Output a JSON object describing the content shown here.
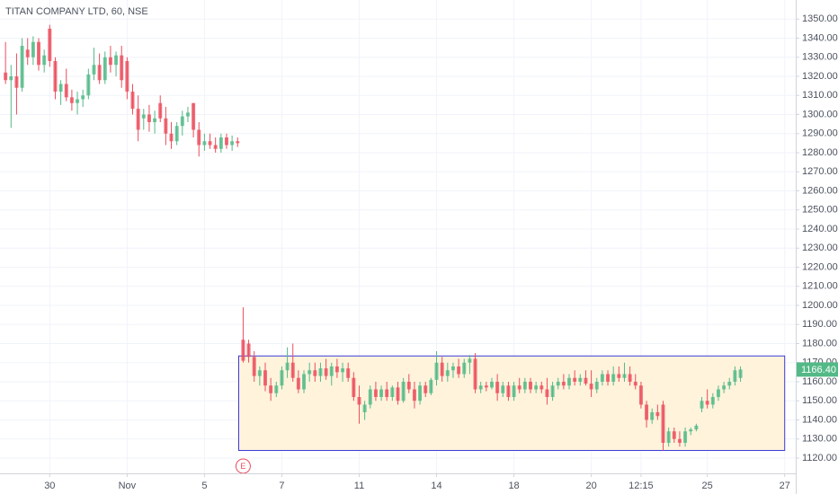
{
  "chart_data": {
    "type": "candlestick",
    "title": "TITAN COMPANY LTD, 60, NSE",
    "up_color": "#53b987",
    "down_color": "#eb4d5c",
    "grid": true,
    "xlim": [
      -1,
      143
    ],
    "ylim": [
      1112,
      1360
    ],
    "xticks": [
      {
        "value": 8,
        "label": "30"
      },
      {
        "value": 22,
        "label": "Nov"
      },
      {
        "value": 36,
        "label": "5"
      },
      {
        "value": 50,
        "label": "7"
      },
      {
        "value": 64,
        "label": "11"
      },
      {
        "value": 78,
        "label": "14"
      },
      {
        "value": 92,
        "label": "18"
      },
      {
        "value": 106,
        "label": "20"
      },
      {
        "value": 115,
        "label": "12:15"
      },
      {
        "value": 127,
        "label": "25"
      },
      {
        "value": 141,
        "label": "27"
      }
    ],
    "yticks": [
      {
        "value": 1120,
        "label": "1120.00"
      },
      {
        "value": 1130,
        "label": "1130.00"
      },
      {
        "value": 1140,
        "label": "1140.00"
      },
      {
        "value": 1150,
        "label": "1150.00"
      },
      {
        "value": 1160,
        "label": "1160.00"
      },
      {
        "value": 1170,
        "label": "1170.00"
      },
      {
        "value": 1180,
        "label": "1180.00"
      },
      {
        "value": 1190,
        "label": "1190.00"
      },
      {
        "value": 1200,
        "label": "1200.00"
      },
      {
        "value": 1210,
        "label": "1210.00"
      },
      {
        "value": 1220,
        "label": "1220.00"
      },
      {
        "value": 1230,
        "label": "1230.00"
      },
      {
        "value": 1240,
        "label": "1240.00"
      },
      {
        "value": 1250,
        "label": "1250.00"
      },
      {
        "value": 1260,
        "label": "1260.00"
      },
      {
        "value": 1270,
        "label": "1270.00"
      },
      {
        "value": 1280,
        "label": "1280.00"
      },
      {
        "value": 1290,
        "label": "1290.00"
      },
      {
        "value": 1300,
        "label": "1300.00"
      },
      {
        "value": 1310,
        "label": "1310.00"
      },
      {
        "value": 1320,
        "label": "1320.00"
      },
      {
        "value": 1330,
        "label": "1330.00"
      },
      {
        "value": 1340,
        "label": "1340.00"
      },
      {
        "value": 1350,
        "label": "1350.00"
      }
    ],
    "last_price": {
      "value": 1166.4,
      "label": "1166.40",
      "color": "#53b987"
    },
    "range_box": {
      "xlim": [
        42.2,
        141
      ],
      "ylim": [
        1124,
        1173.5
      ],
      "color": "#3b3bd6",
      "fill": "#fff3dc"
    },
    "events": [
      {
        "x": 43,
        "label": "E",
        "color": "#eb4d5c"
      }
    ],
    "ohlc": [
      [
        1322,
        1338,
        1316,
        1318
      ],
      [
        1318,
        1326,
        1293,
        1320
      ],
      [
        1320,
        1332,
        1300,
        1314
      ],
      [
        1314,
        1340,
        1312,
        1336
      ],
      [
        1334,
        1340,
        1326,
        1330
      ],
      [
        1330,
        1341,
        1326,
        1338
      ],
      [
        1338,
        1340,
        1323,
        1326
      ],
      [
        1326,
        1334,
        1322,
        1331
      ],
      [
        1345,
        1347,
        1325,
        1328
      ],
      [
        1328,
        1330,
        1308,
        1312
      ],
      [
        1312,
        1318,
        1305,
        1316
      ],
      [
        1316,
        1324,
        1307,
        1309
      ],
      [
        1309,
        1313,
        1302,
        1306
      ],
      [
        1306,
        1312,
        1300,
        1308
      ],
      [
        1308,
        1313,
        1304,
        1310
      ],
      [
        1310,
        1324,
        1308,
        1321
      ],
      [
        1321,
        1335,
        1318,
        1326
      ],
      [
        1326,
        1332,
        1316,
        1318
      ],
      [
        1318,
        1333,
        1316,
        1330
      ],
      [
        1330,
        1336,
        1322,
        1326
      ],
      [
        1326,
        1333,
        1320,
        1331
      ],
      [
        1331,
        1336,
        1314,
        1318
      ],
      [
        1328,
        1330,
        1308,
        1312
      ],
      [
        1312,
        1316,
        1300,
        1303
      ],
      [
        1303,
        1310,
        1286,
        1292
      ],
      [
        1298,
        1303,
        1292,
        1300
      ],
      [
        1300,
        1305,
        1291,
        1296
      ],
      [
        1296,
        1302,
        1290,
        1298
      ],
      [
        1306,
        1310,
        1296,
        1298
      ],
      [
        1298,
        1304,
        1284,
        1290
      ],
      [
        1290,
        1296,
        1282,
        1286
      ],
      [
        1286,
        1296,
        1284,
        1294
      ],
      [
        1294,
        1302,
        1289,
        1299
      ],
      [
        1299,
        1304,
        1296,
        1301
      ],
      [
        1306,
        1306,
        1288,
        1292
      ],
      [
        1292,
        1296,
        1278,
        1284
      ],
      [
        1284,
        1290,
        1281,
        1286
      ],
      [
        1286,
        1290,
        1282,
        1284
      ],
      [
        1284,
        1288,
        1280,
        1282
      ],
      [
        1282,
        1290,
        1280,
        1288
      ],
      [
        1288,
        1290,
        1282,
        1284
      ],
      [
        1284,
        1289,
        1281,
        1286
      ],
      [
        1286,
        1288,
        1283,
        1285
      ],
      [
        1182,
        1199,
        1170,
        1171
      ],
      [
        1180,
        1182,
        1170,
        1173
      ],
      [
        1173,
        1176,
        1160,
        1163
      ],
      [
        1163,
        1168,
        1158,
        1166
      ],
      [
        1166,
        1170,
        1155,
        1158
      ],
      [
        1158,
        1162,
        1150,
        1154
      ],
      [
        1154,
        1160,
        1152,
        1158
      ],
      [
        1158,
        1168,
        1156,
        1166
      ],
      [
        1166,
        1178,
        1162,
        1170
      ],
      [
        1170,
        1180,
        1160,
        1162
      ],
      [
        1162,
        1166,
        1154,
        1156
      ],
      [
        1156,
        1166,
        1154,
        1164
      ],
      [
        1164,
        1170,
        1160,
        1166
      ],
      [
        1166,
        1170,
        1160,
        1163
      ],
      [
        1163,
        1170,
        1160,
        1167
      ],
      [
        1167,
        1172,
        1161,
        1163
      ],
      [
        1163,
        1170,
        1158,
        1168
      ],
      [
        1168,
        1172,
        1162,
        1165
      ],
      [
        1165,
        1170,
        1160,
        1167
      ],
      [
        1167,
        1170,
        1160,
        1162
      ],
      [
        1162,
        1165,
        1150,
        1152
      ],
      [
        1152,
        1158,
        1138,
        1148
      ],
      [
        1144,
        1150,
        1140,
        1148
      ],
      [
        1148,
        1158,
        1146,
        1156
      ],
      [
        1156,
        1160,
        1150,
        1152
      ],
      [
        1152,
        1158,
        1150,
        1156
      ],
      [
        1156,
        1160,
        1150,
        1152
      ],
      [
        1152,
        1158,
        1150,
        1157
      ],
      [
        1157,
        1160,
        1148,
        1150
      ],
      [
        1150,
        1162,
        1149,
        1160
      ],
      [
        1160,
        1164,
        1154,
        1156
      ],
      [
        1156,
        1160,
        1146,
        1150
      ],
      [
        1150,
        1160,
        1148,
        1158
      ],
      [
        1158,
        1160,
        1152,
        1154
      ],
      [
        1154,
        1162,
        1153,
        1161
      ],
      [
        1161,
        1176,
        1158,
        1170
      ],
      [
        1170,
        1173,
        1160,
        1163
      ],
      [
        1163,
        1170,
        1160,
        1166
      ],
      [
        1166,
        1170,
        1162,
        1168
      ],
      [
        1168,
        1172,
        1162,
        1164
      ],
      [
        1164,
        1172,
        1162,
        1170
      ],
      [
        1170,
        1174,
        1164,
        1172
      ],
      [
        1172,
        1175,
        1154,
        1156
      ],
      [
        1156,
        1160,
        1154,
        1158
      ],
      [
        1158,
        1160,
        1155,
        1157
      ],
      [
        1157,
        1162,
        1156,
        1160
      ],
      [
        1160,
        1164,
        1150,
        1154
      ],
      [
        1154,
        1160,
        1152,
        1158
      ],
      [
        1158,
        1160,
        1150,
        1152
      ],
      [
        1152,
        1160,
        1150,
        1158
      ],
      [
        1158,
        1162,
        1154,
        1156
      ],
      [
        1156,
        1162,
        1154,
        1160
      ],
      [
        1160,
        1162,
        1154,
        1156
      ],
      [
        1156,
        1160,
        1154,
        1158
      ],
      [
        1158,
        1160,
        1154,
        1156
      ],
      [
        1156,
        1162,
        1148,
        1152
      ],
      [
        1152,
        1160,
        1150,
        1158
      ],
      [
        1158,
        1162,
        1156,
        1160
      ],
      [
        1160,
        1164,
        1156,
        1158
      ],
      [
        1158,
        1164,
        1156,
        1162
      ],
      [
        1162,
        1166,
        1158,
        1160
      ],
      [
        1160,
        1164,
        1158,
        1162
      ],
      [
        1162,
        1166,
        1158,
        1159
      ],
      [
        1159,
        1166,
        1152,
        1156
      ],
      [
        1156,
        1162,
        1154,
        1160
      ],
      [
        1160,
        1166,
        1158,
        1164
      ],
      [
        1164,
        1166,
        1158,
        1160
      ],
      [
        1160,
        1168,
        1158,
        1164
      ],
      [
        1164,
        1168,
        1160,
        1162
      ],
      [
        1162,
        1170,
        1160,
        1164
      ],
      [
        1164,
        1168,
        1158,
        1160
      ],
      [
        1160,
        1164,
        1156,
        1158
      ],
      [
        1158,
        1160,
        1146,
        1148
      ],
      [
        1148,
        1150,
        1136,
        1140
      ],
      [
        1140,
        1146,
        1138,
        1144
      ],
      [
        1144,
        1148,
        1140,
        1142
      ],
      [
        1148,
        1150,
        1124,
        1128
      ],
      [
        1128,
        1136,
        1126,
        1134
      ],
      [
        1134,
        1136,
        1128,
        1130
      ],
      [
        1130,
        1134,
        1126,
        1128
      ],
      [
        1128,
        1136,
        1126,
        1134
      ],
      [
        1134,
        1136,
        1132,
        1135
      ],
      [
        1135,
        1138,
        1134,
        1137
      ],
      [
        1146,
        1152,
        1144,
        1150
      ],
      [
        1150,
        1156,
        1146,
        1148
      ],
      [
        1148,
        1154,
        1146,
        1152
      ],
      [
        1152,
        1158,
        1150,
        1156
      ],
      [
        1156,
        1160,
        1154,
        1158
      ],
      [
        1158,
        1162,
        1156,
        1160
      ],
      [
        1160,
        1168,
        1158,
        1166
      ],
      [
        1162,
        1168,
        1160,
        1166.4
      ]
    ]
  }
}
